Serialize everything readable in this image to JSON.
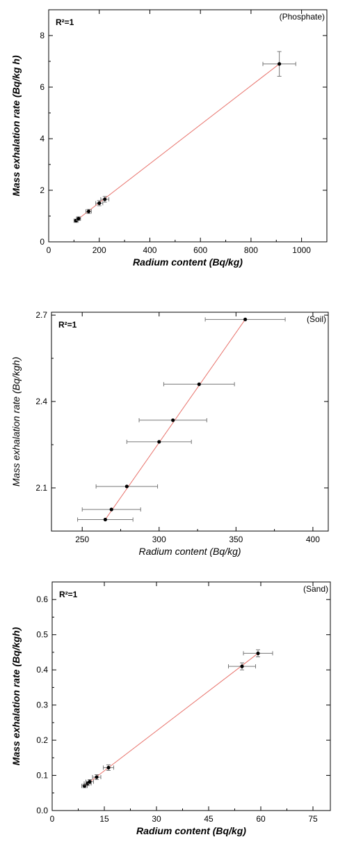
{
  "chart_data": [
    {
      "type": "scatter",
      "panel_label": "(Phosphate)",
      "annotation": "R²=1",
      "xlabel": "Radium content (Bq/kg)",
      "ylabel": "Mass exhalation rate (Bq/kg h)",
      "xlim": [
        0,
        1100
      ],
      "ylim": [
        0,
        9
      ],
      "xticks": [
        0,
        200,
        400,
        600,
        800,
        1000
      ],
      "yticks": [
        0,
        2,
        4,
        6,
        8
      ],
      "grid": false,
      "fit_line": {
        "x": [
          108,
          912
        ],
        "y": [
          0.82,
          6.9
        ],
        "color": "#e8736c"
      },
      "points": [
        {
          "x": 108,
          "y": 0.82,
          "xerr": 8,
          "yerr": 0.06
        },
        {
          "x": 118,
          "y": 0.9,
          "xerr": 8,
          "yerr": 0.07
        },
        {
          "x": 158,
          "y": 1.18,
          "xerr": 11,
          "yerr": 0.08
        },
        {
          "x": 200,
          "y": 1.5,
          "xerr": 14,
          "yerr": 0.1
        },
        {
          "x": 222,
          "y": 1.65,
          "xerr": 16,
          "yerr": 0.11
        },
        {
          "x": 912,
          "y": 6.9,
          "xerr": 65,
          "yerr": 0.48
        }
      ]
    },
    {
      "type": "scatter",
      "panel_label": "(Soil)",
      "annotation": "R²=1",
      "xlabel": "Radium content (Bq/kg)",
      "ylabel": "Mass exhalation rate (Bq/kgh)",
      "xlim": [
        230,
        410
      ],
      "ylim": [
        1.95,
        2.71
      ],
      "xticks": [
        250,
        300,
        350,
        400
      ],
      "yticks": [
        2.1,
        2.4,
        2.7
      ],
      "grid": false,
      "fit_line": {
        "x": [
          265,
          356
        ],
        "y": [
          1.99,
          2.685
        ],
        "color": "#e8736c"
      },
      "points": [
        {
          "x": 265,
          "y": 1.99,
          "xerr": 18,
          "yerr": 0
        },
        {
          "x": 269,
          "y": 2.025,
          "xerr": 19,
          "yerr": 0
        },
        {
          "x": 279,
          "y": 2.105,
          "xerr": 20,
          "yerr": 0
        },
        {
          "x": 300,
          "y": 2.26,
          "xerr": 21,
          "yerr": 0
        },
        {
          "x": 309,
          "y": 2.335,
          "xerr": 22,
          "yerr": 0
        },
        {
          "x": 326,
          "y": 2.46,
          "xerr": 23,
          "yerr": 0
        },
        {
          "x": 356,
          "y": 2.685,
          "xerr": 26,
          "yerr": 0
        }
      ]
    },
    {
      "type": "scatter",
      "panel_label": "(Sand)",
      "annotation": "R²=1",
      "xlabel": "Radium content (Bq/kg)",
      "ylabel": "Mass exhalation rate (Bq/kgh)",
      "xlim": [
        0,
        80
      ],
      "ylim": [
        0,
        0.65
      ],
      "xticks": [
        0,
        15,
        30,
        45,
        60,
        75
      ],
      "yticks": [
        0.0,
        0.1,
        0.2,
        0.3,
        0.4,
        0.5,
        0.6
      ],
      "grid": false,
      "fit_line": {
        "x": [
          9.3,
          59.2
        ],
        "y": [
          0.07,
          0.447
        ],
        "color": "#e8736c"
      },
      "points": [
        {
          "x": 9.3,
          "y": 0.07,
          "xerr": 0.8,
          "yerr": 0.005
        },
        {
          "x": 10.2,
          "y": 0.077,
          "xerr": 1.0,
          "yerr": 0.006
        },
        {
          "x": 10.8,
          "y": 0.082,
          "xerr": 1.1,
          "yerr": 0.006
        },
        {
          "x": 12.8,
          "y": 0.095,
          "xerr": 1.2,
          "yerr": 0.007
        },
        {
          "x": 16.2,
          "y": 0.122,
          "xerr": 1.5,
          "yerr": 0.008
        },
        {
          "x": 54.6,
          "y": 0.41,
          "xerr": 3.9,
          "yerr": 0.01
        },
        {
          "x": 59.2,
          "y": 0.447,
          "xerr": 4.2,
          "yerr": 0.01
        }
      ]
    }
  ]
}
